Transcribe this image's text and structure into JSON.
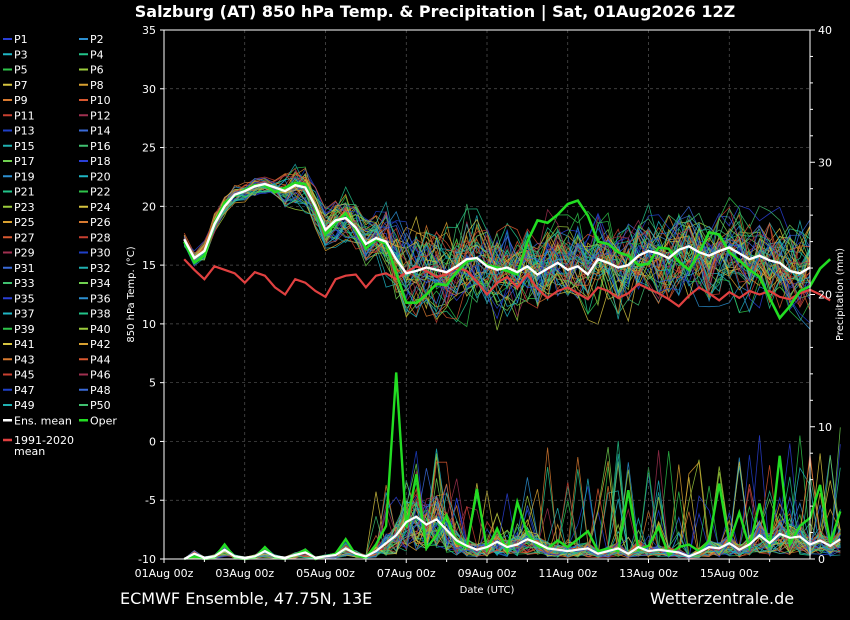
{
  "title": "Salzburg  (AT)  850 hPa Temp. & Precipitation | Sat, 01Aug2026 12Z",
  "footer": {
    "left": "ECMWF Ensemble, 47.75N, 13E",
    "right": "Wetterzentrale.de"
  },
  "chart_data": {
    "type": "line",
    "xlabel": "Date (UTC)",
    "ylabel_left": "850 hPa Temp. (°C)",
    "ylabel_right": "Precipitation (mm)",
    "ylim_left": [
      -10,
      35
    ],
    "ylim_right": [
      0,
      40
    ],
    "yticks_left": [
      -10,
      -5,
      0,
      5,
      10,
      15,
      20,
      25,
      30,
      35
    ],
    "yticks_right": [
      0,
      10,
      20,
      30,
      40
    ],
    "xticks": [
      "01Aug 00z",
      "03Aug 00z",
      "05Aug 00z",
      "07Aug 00z",
      "09Aug 00z",
      "11Aug 00z",
      "13Aug 00z",
      "15Aug 00z"
    ],
    "x_start_hours": 12,
    "x_step_hours": 6,
    "grid": true,
    "legend_placement": "left",
    "legend": [
      "P1",
      "P2",
      "P3",
      "P4",
      "P5",
      "P6",
      "P7",
      "P8",
      "P9",
      "P10",
      "P11",
      "P12",
      "P13",
      "P14",
      "P15",
      "P16",
      "P17",
      "P18",
      "P19",
      "P20",
      "P21",
      "P22",
      "P23",
      "P24",
      "P25",
      "P26",
      "P27",
      "P28",
      "P29",
      "P30",
      "P31",
      "P32",
      "P33",
      "P34",
      "P35",
      "P36",
      "P37",
      "P38",
      "P39",
      "P40",
      "P41",
      "P42",
      "P43",
      "P44",
      "P45",
      "P46",
      "P47",
      "P48",
      "P49",
      "P50",
      "Ens. mean",
      "Oper",
      "1991-2020\nmean"
    ],
    "member_colors": [
      "#2a3fd6",
      "#2c8fd0",
      "#1fb6c4",
      "#22c48a",
      "#2ec44a",
      "#9ccc3c",
      "#d6c440",
      "#d8a030",
      "#d87a30",
      "#d85830",
      "#c84030",
      "#a03050",
      "#1f40c8",
      "#3a6ad8",
      "#20b0b0",
      "#40c070",
      "#70d050"
    ],
    "series": [
      {
        "name": "Ens. mean",
        "color": "#ffffff",
        "temp": [
          17.2,
          15.6,
          16.2,
          18.5,
          20.0,
          21.0,
          21.3,
          21.7,
          21.9,
          21.6,
          21.3,
          21.8,
          21.6,
          20.0,
          18.0,
          18.8,
          19.0,
          18.2,
          16.8,
          17.3,
          17.0,
          15.5,
          14.3,
          14.5,
          14.8,
          14.6,
          14.4,
          14.9,
          15.5,
          15.6,
          14.9,
          14.6,
          14.8,
          14.4,
          14.9,
          14.2,
          14.7,
          15.2,
          14.6,
          14.9,
          14.2,
          15.5,
          15.2,
          14.8,
          15.0,
          15.8,
          16.2,
          16.0,
          15.6,
          16.3,
          16.6,
          16.1,
          15.8,
          16.2,
          16.5,
          16.0,
          15.5,
          15.8,
          15.4,
          15.2,
          14.5,
          14.3,
          14.8
        ],
        "precip": [
          0.0,
          0.4,
          0.1,
          0.2,
          0.7,
          0.2,
          0.1,
          0.2,
          0.6,
          0.2,
          0.1,
          0.3,
          0.5,
          0.1,
          0.2,
          0.3,
          0.8,
          0.4,
          0.2,
          0.6,
          1.2,
          1.8,
          2.8,
          3.2,
          2.6,
          3.0,
          2.2,
          1.4,
          1.0,
          0.7,
          0.9,
          1.3,
          0.9,
          1.1,
          1.5,
          1.2,
          0.8,
          0.7,
          0.6,
          0.7,
          0.8,
          0.4,
          0.6,
          0.8,
          0.4,
          0.9,
          0.6,
          0.7,
          0.6,
          0.5,
          0.2,
          0.5,
          0.9,
          0.8,
          1.2,
          0.7,
          1.1,
          1.8,
          1.2,
          1.9,
          1.6,
          1.7,
          1.1,
          1.4,
          1.0,
          1.5
        ]
      },
      {
        "name": "Oper",
        "color": "#22dd22",
        "temp": [
          17.0,
          15.2,
          15.8,
          18.6,
          20.3,
          20.9,
          21.4,
          21.8,
          21.8,
          21.2,
          21.6,
          22.0,
          21.9,
          19.8,
          17.6,
          18.6,
          19.4,
          18.0,
          16.4,
          17.2,
          16.8,
          14.3,
          11.8,
          11.8,
          12.5,
          13.4,
          13.3,
          14.4,
          15.3,
          15.6,
          15.0,
          14.8,
          14.5,
          14.2,
          17.0,
          18.8,
          18.6,
          19.3,
          20.2,
          20.5,
          19.2,
          17.0,
          16.8,
          16.1,
          15.8,
          15.0,
          15.1,
          16.5,
          16.4,
          15.3,
          14.6,
          16.0,
          17.8,
          17.6,
          16.1,
          15.4,
          14.6,
          14.0,
          12.2,
          10.5,
          11.5,
          12.8,
          13.2,
          14.7,
          15.5
        ],
        "precip": [
          0.0,
          0.2,
          0.0,
          0.1,
          1.1,
          0.1,
          0.0,
          0.1,
          0.9,
          0.1,
          0.0,
          0.3,
          0.7,
          0.0,
          0.2,
          0.4,
          1.5,
          0.3,
          0.1,
          1.1,
          2.5,
          14.1,
          2.4,
          6.4,
          0.8,
          1.8,
          3.3,
          1.2,
          0.9,
          5.3,
          0.7,
          2.3,
          0.6,
          4.3,
          1.9,
          1.0,
          0.8,
          1.4,
          0.9,
          1.5,
          2.1,
          0.6,
          0.8,
          0.6,
          5.2,
          0.7,
          1.0,
          2.4,
          0.3,
          0.9,
          1.1,
          0.6,
          1.4,
          5.7,
          1.2,
          3.5,
          0.9,
          4.2,
          0.9,
          7.8,
          1.1,
          2.5,
          3.1,
          5.6,
          1.2,
          3.6
        ]
      },
      {
        "name": "1991-2020 mean",
        "color": "#e04040",
        "temp": [
          15.5,
          14.6,
          13.8,
          14.9,
          14.6,
          14.3,
          13.5,
          14.4,
          14.1,
          13.1,
          12.5,
          13.8,
          13.5,
          12.8,
          12.3,
          13.8,
          14.1,
          14.2,
          13.1,
          14.1,
          14.3,
          13.8,
          14.4,
          14.9,
          14.5,
          14.0,
          14.2,
          14.8,
          14.5,
          13.6,
          12.5,
          13.5,
          14.0,
          13.1,
          14.2,
          13.0,
          12.2,
          12.8,
          13.1,
          12.6,
          12.1,
          13.1,
          12.8,
          12.2,
          12.6,
          13.4,
          13.0,
          12.6,
          12.1,
          11.5,
          12.4,
          13.1,
          12.6,
          12.0,
          12.7,
          12.2,
          12.8,
          12.5,
          12.8,
          12.3,
          12.1,
          12.6,
          12.9,
          12.5,
          12.0
        ]
      }
    ]
  }
}
